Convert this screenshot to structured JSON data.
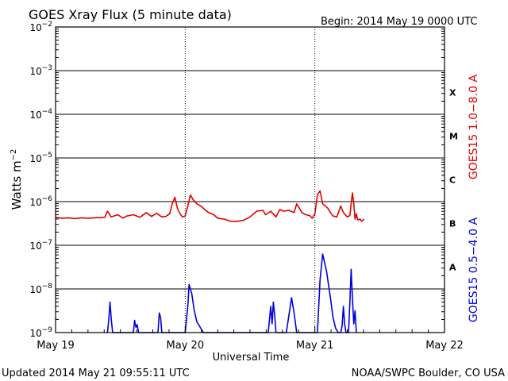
{
  "chart_data": {
    "type": "line",
    "title": "GOES Xray Flux (5 minute data)",
    "begin_label": "Begin:  2014 May 19 0000 UTC",
    "xlabel": "Universal Time",
    "ylabel_base": "Watts m",
    "ylabel_exp": "−2",
    "updated": "Updated 2014 May 21 09:55:11 UTC",
    "source": "NOAA/SWPC Boulder, CO USA",
    "x_range_days": [
      0,
      3
    ],
    "x_ticks": [
      {
        "day": 0,
        "label": "May 19"
      },
      {
        "day": 1,
        "label": "May 20"
      },
      {
        "day": 2,
        "label": "May 21"
      },
      {
        "day": 3,
        "label": "May 22"
      }
    ],
    "y_log_range": [
      -9,
      -2
    ],
    "y_ticks": [
      {
        "exp": -2,
        "base": "10",
        "sup": "−2"
      },
      {
        "exp": -3,
        "base": "10",
        "sup": "−3"
      },
      {
        "exp": -4,
        "base": "10",
        "sup": "−4"
      },
      {
        "exp": -5,
        "base": "10",
        "sup": "−5"
      },
      {
        "exp": -6,
        "base": "10",
        "sup": "−6"
      },
      {
        "exp": -7,
        "base": "10",
        "sup": "−7"
      },
      {
        "exp": -8,
        "base": "10",
        "sup": "−8"
      },
      {
        "exp": -9,
        "base": "10",
        "sup": "−9"
      }
    ],
    "grid": true,
    "flare_classes": [
      {
        "label": "X",
        "exp_low": -4
      },
      {
        "label": "M",
        "exp_low": -5
      },
      {
        "label": "C",
        "exp_low": -6
      },
      {
        "label": "B",
        "exp_low": -7
      },
      {
        "label": "A",
        "exp_low": -8
      }
    ],
    "series": [
      {
        "name": "GOES15 1.0−8.0 A",
        "color": "#e00000",
        "points": [
          [
            0.0,
            -6.36
          ],
          [
            0.05,
            -6.38
          ],
          [
            0.1,
            -6.37
          ],
          [
            0.15,
            -6.39
          ],
          [
            0.2,
            -6.37
          ],
          [
            0.25,
            -6.38
          ],
          [
            0.3,
            -6.37
          ],
          [
            0.38,
            -6.36
          ],
          [
            0.4,
            -6.22
          ],
          [
            0.43,
            -6.35
          ],
          [
            0.48,
            -6.3
          ],
          [
            0.52,
            -6.38
          ],
          [
            0.55,
            -6.33
          ],
          [
            0.6,
            -6.3
          ],
          [
            0.65,
            -6.36
          ],
          [
            0.7,
            -6.25
          ],
          [
            0.74,
            -6.34
          ],
          [
            0.78,
            -6.27
          ],
          [
            0.82,
            -6.35
          ],
          [
            0.85,
            -6.34
          ],
          [
            0.88,
            -6.28
          ],
          [
            0.9,
            -6.05
          ],
          [
            0.92,
            -5.9
          ],
          [
            0.94,
            -6.15
          ],
          [
            0.96,
            -6.28
          ],
          [
            0.98,
            -6.35
          ],
          [
            1.0,
            -6.33
          ],
          [
            1.02,
            -6.1
          ],
          [
            1.04,
            -5.85
          ],
          [
            1.06,
            -5.95
          ],
          [
            1.09,
            -6.05
          ],
          [
            1.12,
            -6.1
          ],
          [
            1.15,
            -6.18
          ],
          [
            1.18,
            -6.25
          ],
          [
            1.22,
            -6.3
          ],
          [
            1.25,
            -6.38
          ],
          [
            1.3,
            -6.4
          ],
          [
            1.35,
            -6.45
          ],
          [
            1.4,
            -6.45
          ],
          [
            1.45,
            -6.43
          ],
          [
            1.5,
            -6.35
          ],
          [
            1.55,
            -6.22
          ],
          [
            1.6,
            -6.2
          ],
          [
            1.62,
            -6.3
          ],
          [
            1.66,
            -6.22
          ],
          [
            1.7,
            -6.35
          ],
          [
            1.73,
            -6.18
          ],
          [
            1.76,
            -6.22
          ],
          [
            1.8,
            -6.2
          ],
          [
            1.84,
            -6.25
          ],
          [
            1.86,
            -6.05
          ],
          [
            1.88,
            -6.15
          ],
          [
            1.9,
            -6.25
          ],
          [
            1.93,
            -6.3
          ],
          [
            1.96,
            -6.32
          ],
          [
            1.98,
            -6.38
          ],
          [
            2.0,
            -6.28
          ],
          [
            2.02,
            -5.85
          ],
          [
            2.04,
            -5.75
          ],
          [
            2.06,
            -6.05
          ],
          [
            2.08,
            -6.1
          ],
          [
            2.1,
            -6.15
          ],
          [
            2.12,
            -6.25
          ],
          [
            2.14,
            -6.33
          ],
          [
            2.17,
            -6.35
          ],
          [
            2.2,
            -6.1
          ],
          [
            2.22,
            -6.25
          ],
          [
            2.25,
            -6.35
          ],
          [
            2.27,
            -6.32
          ],
          [
            2.29,
            -5.8
          ],
          [
            2.3,
            -6.05
          ],
          [
            2.31,
            -6.4
          ],
          [
            2.32,
            -6.28
          ],
          [
            2.33,
            -6.42
          ],
          [
            2.35,
            -6.4
          ],
          [
            2.36,
            -6.45
          ],
          [
            2.38,
            -6.4
          ]
        ]
      },
      {
        "name": "GOES15 0.5−4.0 A",
        "color": "#0000dd",
        "points": [
          [
            0.4,
            -9.0
          ],
          [
            0.41,
            -8.72
          ],
          [
            0.42,
            -8.3
          ],
          [
            0.43,
            -8.7
          ],
          [
            0.44,
            -9.0
          ],
          [
            0.6,
            -9.0
          ],
          [
            0.61,
            -8.72
          ],
          [
            0.62,
            -8.88
          ],
          [
            0.63,
            -8.82
          ],
          [
            0.64,
            -9.0
          ],
          [
            0.79,
            -9.0
          ],
          [
            0.8,
            -8.55
          ],
          [
            0.81,
            -8.65
          ],
          [
            0.82,
            -9.0
          ],
          [
            1.0,
            -9.0
          ],
          [
            1.02,
            -8.4
          ],
          [
            1.03,
            -7.9
          ],
          [
            1.05,
            -8.1
          ],
          [
            1.07,
            -8.5
          ],
          [
            1.09,
            -8.75
          ],
          [
            1.12,
            -8.9
          ],
          [
            1.14,
            -9.0
          ],
          [
            1.64,
            -9.0
          ],
          [
            1.65,
            -8.7
          ],
          [
            1.66,
            -8.4
          ],
          [
            1.67,
            -8.8
          ],
          [
            1.68,
            -8.3
          ],
          [
            1.69,
            -8.6
          ],
          [
            1.7,
            -9.0
          ],
          [
            1.78,
            -9.0
          ],
          [
            1.8,
            -8.6
          ],
          [
            1.82,
            -8.2
          ],
          [
            1.84,
            -8.55
          ],
          [
            1.86,
            -9.0
          ],
          [
            2.02,
            -9.0
          ],
          [
            2.04,
            -7.8
          ],
          [
            2.06,
            -7.2
          ],
          [
            2.09,
            -7.6
          ],
          [
            2.12,
            -8.2
          ],
          [
            2.14,
            -8.65
          ],
          [
            2.16,
            -8.9
          ],
          [
            2.18,
            -9.0
          ],
          [
            2.2,
            -9.0
          ],
          [
            2.21,
            -8.85
          ],
          [
            2.22,
            -8.4
          ],
          [
            2.23,
            -8.8
          ],
          [
            2.24,
            -9.0
          ],
          [
            2.26,
            -9.0
          ],
          [
            2.27,
            -8.3
          ],
          [
            2.28,
            -7.55
          ],
          [
            2.29,
            -8.2
          ],
          [
            2.3,
            -8.8
          ],
          [
            2.31,
            -8.5
          ],
          [
            2.32,
            -9.0
          ]
        ]
      }
    ]
  }
}
